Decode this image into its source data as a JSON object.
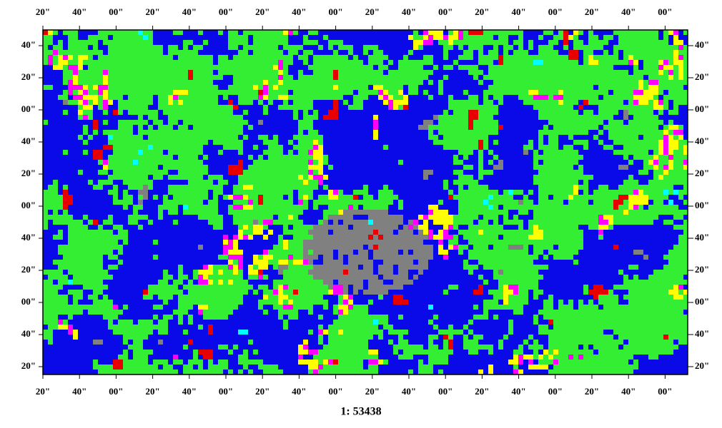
{
  "map": {
    "top_labels": [
      "20\"",
      "40\"",
      "00\"",
      "20\"",
      "40\"",
      "00\"",
      "20\"",
      "40\"",
      "00\"",
      "20\"",
      "40\"",
      "00\"",
      "20\"",
      "40\"",
      "00\"",
      "20\"",
      "40\"",
      "00\""
    ],
    "bottom_labels": [
      "20\"",
      "40\"",
      "00\"",
      "20\"",
      "40\"",
      "00\"",
      "20\"",
      "40\"",
      "00\"",
      "20\"",
      "40\"",
      "00\"",
      "20\"",
      "40\"",
      "00\"",
      "20\"",
      "40\"",
      "00\""
    ],
    "left_labels": [
      "40\"",
      "20\"",
      "00\"",
      "40\"",
      "20\"",
      "00\"",
      "40\"",
      "20\"",
      "00\"",
      "40\"",
      "20\""
    ],
    "right_labels": [
      "40\"",
      "20\"",
      "00\"",
      "40\"",
      "20\"",
      "00\"",
      "40\"",
      "20\"",
      "00\"",
      "40\"",
      "20\""
    ],
    "scale": "1: 53438"
  }
}
